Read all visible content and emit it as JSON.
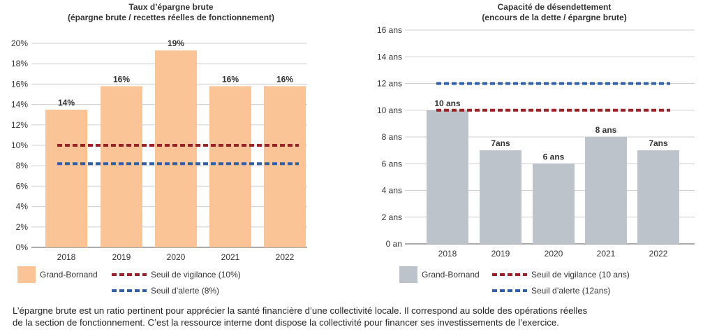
{
  "chart_data": [
    {
      "type": "bar",
      "title": "Taux d’épargne brute",
      "subtitle": "(épargne brute / recettes réelles de fonctionnement)",
      "categories": [
        "2018",
        "2019",
        "2020",
        "2021",
        "2022"
      ],
      "series": [
        {
          "name": "Grand-Bornand",
          "values": [
            13.5,
            15.8,
            19.3,
            15.8,
            15.8
          ],
          "color": "#fbc497"
        }
      ],
      "data_labels": [
        "14%",
        "16%",
        "19%",
        "16%",
        "16%"
      ],
      "reference_lines": [
        {
          "name": "Seuil de vigilance (10%)",
          "value": 10,
          "color": "#9b2226"
        },
        {
          "name": "Seuil d’alerte (8%)",
          "value": 8.2,
          "color": "#2f5fa5"
        }
      ],
      "yticks": [
        "0%",
        "2%",
        "4%",
        "6%",
        "8%",
        "10%",
        "12%",
        "14%",
        "16%",
        "18%",
        "20%"
      ],
      "ylim": [
        0,
        20
      ],
      "grid": true,
      "legend": "bottom"
    },
    {
      "type": "bar",
      "title": "Capacité de désendettement",
      "subtitle": "(encours de la dette / épargne brute)",
      "categories": [
        "2018",
        "2019",
        "2020",
        "2021",
        "2022"
      ],
      "series": [
        {
          "name": "Grand-Bornand",
          "values": [
            10,
            7,
            6,
            8,
            7
          ],
          "color": "#bcc3ca"
        }
      ],
      "data_labels": [
        "10 ans",
        "7ans",
        "6 ans",
        "8 ans",
        "7ans"
      ],
      "reference_lines": [
        {
          "name": "Seuil de vigilance (10 ans)",
          "value": 10,
          "color": "#9b2226"
        },
        {
          "name": "Seuil d’alerte (12ans)",
          "value": 12,
          "color": "#2f5fa5"
        }
      ],
      "yticks": [
        "0 an",
        "2 ans",
        "4 ans",
        "6 ans",
        "8 ans",
        "10 ans",
        "12 ans",
        "14 ans",
        "16 ans"
      ],
      "ylim": [
        0,
        16
      ],
      "grid": true,
      "legend": "bottom"
    }
  ],
  "caption": {
    "line1": "L’épargne brute est un ratio pertinent pour apprécier la santé financière d’une collectivité locale. Il correspond au solde des opérations réelles",
    "line2": "de la section de fonctionnement. C’est la ressource interne dont dispose la collectivité pour financer ses investissements de l’exercice."
  }
}
